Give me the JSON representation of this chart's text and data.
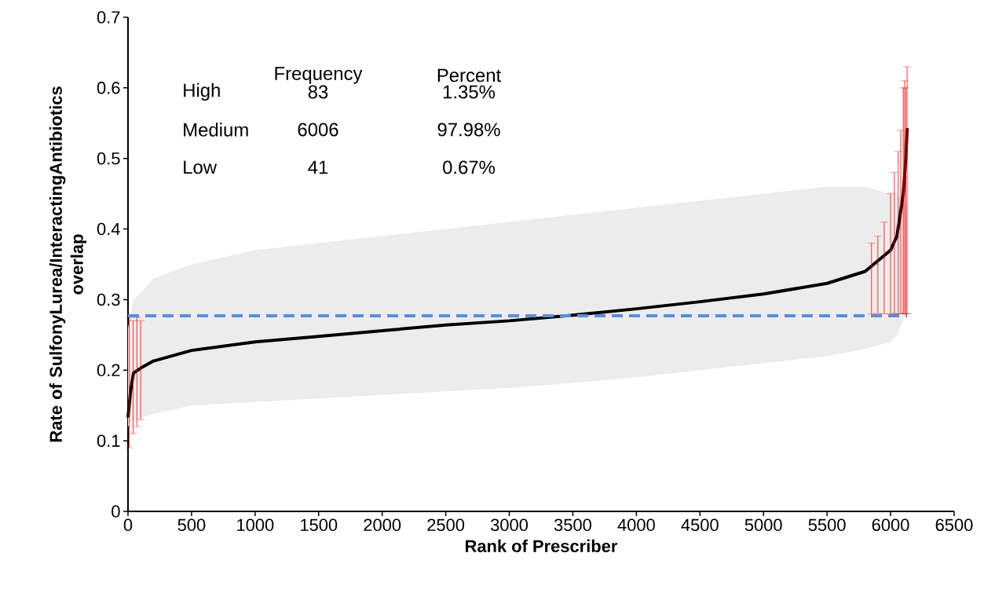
{
  "chart_data": {
    "type": "line",
    "xlabel": "Rank of Prescriber",
    "ylabel": "Rate of SulfonyLurea/InteractingAntibiotics overlap",
    "xlim": [
      0,
      6500
    ],
    "ylim": [
      0,
      0.7
    ],
    "xticks": [
      0,
      500,
      1000,
      1500,
      2000,
      2500,
      3000,
      3500,
      4000,
      4500,
      5000,
      5500,
      6000,
      6500
    ],
    "yticks": [
      0,
      0.1,
      0.2,
      0.3,
      0.4,
      0.5,
      0.6,
      0.7
    ],
    "series": [
      {
        "color": "#000000",
        "x": [
          0,
          20,
          43,
          100,
          200,
          500,
          1000,
          1500,
          2000,
          2500,
          3000,
          3500,
          4000,
          4500,
          5000,
          5500,
          5800,
          6000,
          6050,
          6100,
          6120,
          6130
        ],
        "values": [
          0.133,
          0.17,
          0.196,
          0.203,
          0.213,
          0.228,
          0.24,
          0.248,
          0.256,
          0.264,
          0.27,
          0.278,
          0.287,
          0.297,
          0.308,
          0.323,
          0.34,
          0.37,
          0.39,
          0.45,
          0.5,
          0.543
        ],
        "lower": [
          0.12,
          0.125,
          0.128,
          0.132,
          0.138,
          0.15,
          0.155,
          0.16,
          0.165,
          0.17,
          0.175,
          0.182,
          0.19,
          0.2,
          0.21,
          0.22,
          0.23,
          0.24,
          0.25,
          0.27,
          0.28,
          0.29
        ],
        "upper": [
          0.26,
          0.28,
          0.3,
          0.31,
          0.33,
          0.35,
          0.37,
          0.38,
          0.39,
          0.4,
          0.41,
          0.42,
          0.43,
          0.44,
          0.45,
          0.46,
          0.46,
          0.45,
          0.45,
          0.44,
          0.43,
          0.42
        ]
      },
      {
        "type": "scatter",
        "color": "#ff0000",
        "x": [
          10,
          40,
          70,
          100,
          5850,
          5900,
          5950,
          6000,
          6030,
          6060,
          6080,
          6100,
          6110,
          6120,
          6130
        ],
        "values": [
          0.16,
          0.195,
          0.2,
          0.203,
          0.345,
          0.35,
          0.36,
          0.37,
          0.38,
          0.39,
          0.41,
          0.45,
          0.47,
          0.5,
          0.54
        ],
        "errors": [
          [
            0.09,
            0.275
          ],
          [
            0.11,
            0.27
          ],
          [
            0.12,
            0.275
          ],
          [
            0.13,
            0.27
          ],
          [
            0.28,
            0.38
          ],
          [
            0.28,
            0.39
          ],
          [
            0.28,
            0.41
          ],
          [
            0.28,
            0.45
          ],
          [
            0.28,
            0.48
          ],
          [
            0.28,
            0.51
          ],
          [
            0.28,
            0.54
          ],
          [
            0.28,
            0.6
          ],
          [
            0.28,
            0.61
          ],
          [
            0.28,
            0.6
          ],
          [
            0.28,
            0.63
          ]
        ]
      }
    ],
    "ref_lines": [
      {
        "axis": "y",
        "value": 0.277,
        "color": "#5b8fd6",
        "line_style": "dashed"
      }
    ],
    "annotations": [
      "Frequency",
      "Percent",
      "High",
      "83",
      "1.35%",
      "Medium",
      "6006",
      "97.98%",
      "Low",
      "41",
      "0.67%"
    ]
  }
}
